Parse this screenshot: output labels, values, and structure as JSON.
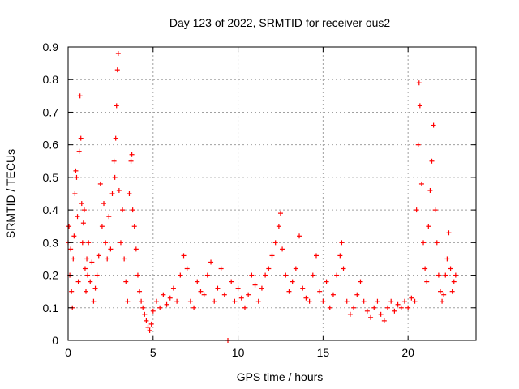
{
  "chart_data": {
    "type": "scatter",
    "title": "Day 123 of 2022, SRMTID for receiver ous2",
    "xlabel": "GPS time / hours",
    "ylabel": "SRMTID / TECUs",
    "xlim": [
      0,
      24
    ],
    "ylim": [
      0,
      0.9
    ],
    "grid": true,
    "marker": "plus",
    "color": "#ff0000",
    "x_ticks": [
      0,
      5,
      10,
      15,
      20
    ],
    "x_tick_labels": [
      "0",
      "5",
      "10",
      "15",
      "20"
    ],
    "y_ticks": [
      0,
      0.1,
      0.2,
      0.3,
      0.4,
      0.5,
      0.6,
      0.7,
      0.8,
      0.9
    ],
    "y_tick_labels": [
      "0",
      "0.1",
      "0.2",
      "0.3",
      "0.4",
      "0.5",
      "0.6",
      "0.7",
      "0.8",
      "0.9"
    ],
    "series": [
      {
        "name": "SRMTID",
        "points": [
          [
            0.0,
            0.3
          ],
          [
            0.05,
            0.35
          ],
          [
            0.1,
            0.2
          ],
          [
            0.15,
            0.28
          ],
          [
            0.2,
            0.15
          ],
          [
            0.25,
            0.1
          ],
          [
            0.3,
            0.25
          ],
          [
            0.35,
            0.32
          ],
          [
            0.4,
            0.45
          ],
          [
            0.45,
            0.52
          ],
          [
            0.5,
            0.5
          ],
          [
            0.55,
            0.38
          ],
          [
            0.6,
            0.18
          ],
          [
            0.65,
            0.58
          ],
          [
            0.7,
            0.75
          ],
          [
            0.75,
            0.62
          ],
          [
            0.8,
            0.42
          ],
          [
            0.85,
            0.3
          ],
          [
            0.9,
            0.36
          ],
          [
            0.95,
            0.4
          ],
          [
            1.0,
            0.22
          ],
          [
            1.05,
            0.15
          ],
          [
            1.1,
            0.25
          ],
          [
            1.15,
            0.2
          ],
          [
            1.2,
            0.3
          ],
          [
            1.3,
            0.18
          ],
          [
            1.4,
            0.24
          ],
          [
            1.5,
            0.12
          ],
          [
            1.6,
            0.16
          ],
          [
            1.7,
            0.2
          ],
          [
            1.8,
            0.26
          ],
          [
            1.9,
            0.48
          ],
          [
            2.0,
            0.35
          ],
          [
            2.1,
            0.42
          ],
          [
            2.2,
            0.3
          ],
          [
            2.3,
            0.25
          ],
          [
            2.4,
            0.38
          ],
          [
            2.5,
            0.28
          ],
          [
            2.6,
            0.45
          ],
          [
            2.7,
            0.55
          ],
          [
            2.75,
            0.5
          ],
          [
            2.8,
            0.62
          ],
          [
            2.85,
            0.72
          ],
          [
            2.9,
            0.83
          ],
          [
            2.95,
            0.88
          ],
          [
            3.0,
            0.46
          ],
          [
            3.1,
            0.3
          ],
          [
            3.2,
            0.4
          ],
          [
            3.3,
            0.25
          ],
          [
            3.4,
            0.18
          ],
          [
            3.5,
            0.12
          ],
          [
            3.6,
            0.45
          ],
          [
            3.7,
            0.55
          ],
          [
            3.75,
            0.57
          ],
          [
            3.8,
            0.4
          ],
          [
            3.9,
            0.35
          ],
          [
            4.0,
            0.28
          ],
          [
            4.1,
            0.2
          ],
          [
            4.2,
            0.15
          ],
          [
            4.3,
            0.12
          ],
          [
            4.4,
            0.1
          ],
          [
            4.5,
            0.08
          ],
          [
            4.6,
            0.06
          ],
          [
            4.7,
            0.04
          ],
          [
            4.8,
            0.03
          ],
          [
            4.9,
            0.05
          ],
          [
            5.0,
            0.09
          ],
          [
            5.2,
            0.12
          ],
          [
            5.4,
            0.1
          ],
          [
            5.6,
            0.14
          ],
          [
            5.8,
            0.11
          ],
          [
            6.0,
            0.13
          ],
          [
            6.2,
            0.16
          ],
          [
            6.4,
            0.12
          ],
          [
            6.6,
            0.2
          ],
          [
            6.8,
            0.26
          ],
          [
            7.0,
            0.22
          ],
          [
            7.2,
            0.12
          ],
          [
            7.4,
            0.1
          ],
          [
            7.6,
            0.18
          ],
          [
            7.8,
            0.15
          ],
          [
            8.0,
            0.14
          ],
          [
            8.2,
            0.2
          ],
          [
            8.4,
            0.24
          ],
          [
            8.6,
            0.12
          ],
          [
            8.8,
            0.16
          ],
          [
            9.0,
            0.22
          ],
          [
            9.2,
            0.14
          ],
          [
            9.4,
            0.0
          ],
          [
            9.6,
            0.18
          ],
          [
            9.8,
            0.12
          ],
          [
            10.0,
            0.16
          ],
          [
            10.2,
            0.13
          ],
          [
            10.4,
            0.1
          ],
          [
            10.6,
            0.14
          ],
          [
            10.8,
            0.2
          ],
          [
            11.0,
            0.17
          ],
          [
            11.2,
            0.12
          ],
          [
            11.4,
            0.16
          ],
          [
            11.6,
            0.2
          ],
          [
            11.8,
            0.22
          ],
          [
            12.0,
            0.26
          ],
          [
            12.2,
            0.3
          ],
          [
            12.4,
            0.35
          ],
          [
            12.5,
            0.39
          ],
          [
            12.6,
            0.28
          ],
          [
            12.8,
            0.2
          ],
          [
            13.0,
            0.15
          ],
          [
            13.2,
            0.18
          ],
          [
            13.4,
            0.22
          ],
          [
            13.6,
            0.32
          ],
          [
            13.8,
            0.16
          ],
          [
            14.0,
            0.13
          ],
          [
            14.2,
            0.12
          ],
          [
            14.4,
            0.2
          ],
          [
            14.6,
            0.26
          ],
          [
            14.8,
            0.15
          ],
          [
            15.0,
            0.12
          ],
          [
            15.2,
            0.18
          ],
          [
            15.4,
            0.1
          ],
          [
            15.6,
            0.14
          ],
          [
            15.8,
            0.2
          ],
          [
            16.0,
            0.26
          ],
          [
            16.1,
            0.3
          ],
          [
            16.2,
            0.22
          ],
          [
            16.4,
            0.12
          ],
          [
            16.6,
            0.08
          ],
          [
            16.8,
            0.1
          ],
          [
            17.0,
            0.14
          ],
          [
            17.2,
            0.18
          ],
          [
            17.4,
            0.12
          ],
          [
            17.6,
            0.09
          ],
          [
            17.8,
            0.07
          ],
          [
            18.0,
            0.1
          ],
          [
            18.2,
            0.12
          ],
          [
            18.4,
            0.08
          ],
          [
            18.6,
            0.06
          ],
          [
            18.8,
            0.1
          ],
          [
            19.0,
            0.12
          ],
          [
            19.2,
            0.09
          ],
          [
            19.4,
            0.11
          ],
          [
            19.6,
            0.1
          ],
          [
            19.8,
            0.12
          ],
          [
            20.0,
            0.1
          ],
          [
            20.2,
            0.13
          ],
          [
            20.4,
            0.12
          ],
          [
            20.5,
            0.4
          ],
          [
            20.6,
            0.6
          ],
          [
            20.65,
            0.79
          ],
          [
            20.7,
            0.72
          ],
          [
            20.8,
            0.48
          ],
          [
            20.9,
            0.3
          ],
          [
            21.0,
            0.22
          ],
          [
            21.1,
            0.18
          ],
          [
            21.2,
            0.35
          ],
          [
            21.3,
            0.46
          ],
          [
            21.4,
            0.55
          ],
          [
            21.5,
            0.66
          ],
          [
            21.6,
            0.4
          ],
          [
            21.7,
            0.3
          ],
          [
            21.8,
            0.2
          ],
          [
            21.9,
            0.15
          ],
          [
            22.0,
            0.12
          ],
          [
            22.1,
            0.14
          ],
          [
            22.2,
            0.2
          ],
          [
            22.3,
            0.25
          ],
          [
            22.4,
            0.33
          ],
          [
            22.5,
            0.22
          ],
          [
            22.6,
            0.15
          ],
          [
            22.7,
            0.18
          ],
          [
            22.8,
            0.2
          ]
        ]
      }
    ]
  }
}
